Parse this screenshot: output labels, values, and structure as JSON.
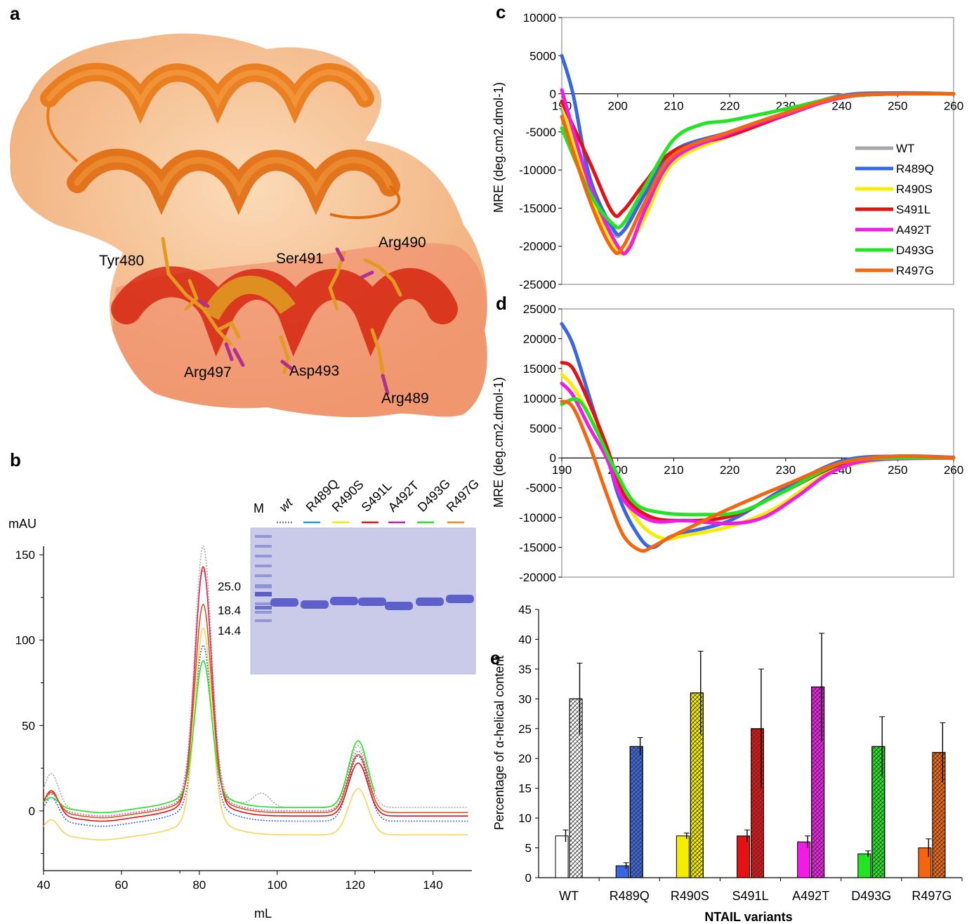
{
  "panels": {
    "a": "a",
    "b": "b",
    "c": "c",
    "d": "d",
    "e": "e"
  },
  "colors": {
    "WT": "#a6a6a6",
    "R489Q": "#3a66e0",
    "R490S": "#f5ec00",
    "S491L": "#e41212",
    "A492T": "#f01ce6",
    "D493G": "#22e422",
    "R497G": "#f4650f",
    "orange": "#f08a1e",
    "red": "#d41e0a",
    "surface": "#f4b483",
    "gel": "#c9ccea",
    "band": "#4a4ec4"
  },
  "panel_a": {
    "residues": [
      "Tyr480",
      "Ser491",
      "Arg490",
      "Arg497",
      "Asp493",
      "Arg489"
    ]
  },
  "panel_b": {
    "gel": {
      "marker": "M",
      "lanes": [
        "wt",
        "R489Q",
        "R490S",
        "S491L",
        "A492T",
        "D493G",
        "R497G"
      ],
      "mw": [
        "25.0",
        "18.4",
        "14.4"
      ]
    }
  },
  "chart_data": [
    {
      "panel": "b",
      "type": "line",
      "xlabel": "mL",
      "ylabel": "mAU",
      "xlim": [
        40,
        150
      ],
      "ylim": [
        -35,
        155
      ],
      "xticks": [
        40,
        60,
        80,
        100,
        120,
        140
      ],
      "yticks": [
        0,
        50,
        100,
        150
      ],
      "series": [
        {
          "name": "wt",
          "peak1": 147,
          "peak2": 38,
          "base": 2,
          "start": 22
        },
        {
          "name": "R489Q",
          "peak1": 89,
          "peak2": 32,
          "base": -6,
          "start": 8
        },
        {
          "name": "R490S",
          "peak1": 99,
          "peak2": 13,
          "base": -14,
          "start": -5
        },
        {
          "name": "S491L",
          "peak1": 135,
          "peak2": 28,
          "base": -3,
          "start": 12
        },
        {
          "name": "A492T",
          "peak1": 133,
          "peak2": 35,
          "base": 0,
          "start": 10
        },
        {
          "name": "D493G",
          "peak1": 80,
          "peak2": 41,
          "base": 2,
          "start": 8
        },
        {
          "name": "R497G",
          "peak1": 113,
          "peak2": 33,
          "base": -1,
          "start": 11
        }
      ]
    },
    {
      "panel": "c",
      "type": "line",
      "xlabel": "",
      "ylabel": "MRE  (deg.cm2.dmol-1)",
      "xlim": [
        190,
        260
      ],
      "ylim": [
        -25000,
        10000
      ],
      "xticks": [
        190,
        200,
        210,
        220,
        230,
        240,
        250,
        260
      ],
      "yticks": [
        10000,
        5000,
        0,
        -5000,
        -10000,
        -15000,
        -20000,
        -25000
      ],
      "legend": "right",
      "series": [
        {
          "name": "WT",
          "x": [
            190,
            195,
            199,
            201,
            205,
            210,
            220,
            230,
            240,
            250,
            260
          ],
          "y": [
            -2000,
            -12000,
            -18000,
            -18000,
            -12500,
            -7500,
            -5000,
            -2500,
            -200,
            100,
            0
          ]
        },
        {
          "name": "R489Q",
          "x": [
            190,
            192,
            195,
            199,
            201,
            205,
            210,
            220,
            230,
            240,
            250,
            260
          ],
          "y": [
            5000,
            0,
            -11000,
            -17500,
            -18000,
            -13000,
            -7500,
            -5000,
            -2500,
            -300,
            100,
            0
          ]
        },
        {
          "name": "R490S",
          "x": [
            190,
            195,
            200,
            202,
            205,
            210,
            220,
            230,
            240,
            250,
            260
          ],
          "y": [
            -1000,
            -13000,
            -20500,
            -20000,
            -16000,
            -9000,
            -5500,
            -2800,
            -500,
            0,
            0
          ]
        },
        {
          "name": "S491L",
          "x": [
            190,
            195,
            199,
            201,
            205,
            210,
            220,
            230,
            240,
            250,
            260
          ],
          "y": [
            -1000,
            -9000,
            -15500,
            -15300,
            -11500,
            -7500,
            -5500,
            -2800,
            -500,
            0,
            0
          ]
        },
        {
          "name": "A492T",
          "x": [
            190,
            195,
            200,
            202,
            205,
            210,
            220,
            230,
            240,
            250,
            260
          ],
          "y": [
            500,
            -12000,
            -20000,
            -20300,
            -15000,
            -8500,
            -5200,
            -2700,
            -500,
            0,
            0
          ]
        },
        {
          "name": "D493G",
          "x": [
            190,
            195,
            199,
            201,
            205,
            210,
            215,
            220,
            230,
            240,
            250,
            260
          ],
          "y": [
            -4500,
            -13000,
            -17000,
            -17000,
            -12000,
            -6000,
            -4000,
            -3500,
            -2000,
            -400,
            0,
            0
          ]
        },
        {
          "name": "R497G",
          "x": [
            190,
            195,
            199,
            201,
            205,
            210,
            220,
            230,
            240,
            250,
            260
          ],
          "y": [
            -3000,
            -14000,
            -20300,
            -20000,
            -14000,
            -8000,
            -5000,
            -2500,
            -400,
            0,
            0
          ]
        }
      ]
    },
    {
      "panel": "d",
      "type": "line",
      "xlabel": "",
      "ylabel": "MRE  (deg.cm2.dmol-1)",
      "xlim": [
        190,
        260
      ],
      "ylim": [
        -20000,
        25000
      ],
      "xticks": [
        190,
        200,
        210,
        220,
        230,
        240,
        250,
        260
      ],
      "yticks": [
        25000,
        20000,
        15000,
        10000,
        5000,
        0,
        -5000,
        -10000,
        -15000,
        -20000
      ],
      "series": [
        {
          "name": "R489Q",
          "x": [
            190,
            192,
            195,
            198,
            200,
            203,
            206,
            210,
            220,
            230,
            240,
            250,
            260
          ],
          "y": [
            22500,
            19000,
            10000,
            1000,
            -6000,
            -12000,
            -15000,
            -13000,
            -10500,
            -5000,
            -500,
            300,
            100
          ]
        },
        {
          "name": "R490S",
          "x": [
            190,
            192,
            195,
            198,
            200,
            204,
            208,
            212,
            220,
            228,
            235,
            240,
            250,
            260
          ],
          "y": [
            14000,
            12000,
            7000,
            1000,
            -5000,
            -11000,
            -13500,
            -13000,
            -11500,
            -8500,
            -4000,
            -1500,
            0,
            0
          ]
        },
        {
          "name": "S491L",
          "x": [
            190,
            192,
            195,
            198,
            201,
            205,
            210,
            220,
            230,
            240,
            250,
            260
          ],
          "y": [
            16000,
            15000,
            9000,
            2000,
            -6000,
            -9500,
            -10500,
            -9800,
            -5500,
            -1000,
            200,
            0
          ]
        },
        {
          "name": "A492T",
          "x": [
            190,
            192,
            195,
            198,
            201,
            206,
            212,
            220,
            226,
            232,
            238,
            245,
            260
          ],
          "y": [
            12500,
            10500,
            5000,
            0,
            -7000,
            -10500,
            -10500,
            -11000,
            -10000,
            -6500,
            -2500,
            -400,
            0
          ]
        },
        {
          "name": "D493G",
          "x": [
            190,
            193,
            196,
            199,
            203,
            208,
            215,
            222,
            230,
            240,
            250,
            260
          ],
          "y": [
            9000,
            9700,
            5000,
            -1000,
            -7500,
            -9200,
            -9500,
            -9000,
            -5500,
            -800,
            0,
            0
          ]
        },
        {
          "name": "R497G",
          "x": [
            190,
            192,
            195,
            198,
            201,
            204,
            206,
            210,
            220,
            230,
            240,
            250,
            260
          ],
          "y": [
            9500,
            8500,
            2000,
            -6000,
            -13000,
            -15500,
            -15000,
            -13000,
            -8500,
            -4500,
            -800,
            300,
            0
          ]
        }
      ]
    },
    {
      "panel": "e",
      "type": "bar",
      "xlabel": "NTAIL variants",
      "ylabel": "Percentage of α-helical content",
      "ylim": [
        0,
        45
      ],
      "yticks": [
        0,
        5,
        10,
        15,
        20,
        25,
        30,
        35,
        40,
        45
      ],
      "categories": [
        "WT",
        "R489Q",
        "R490S",
        "S491L",
        "A492T",
        "D493G",
        "R497G"
      ],
      "series": [
        {
          "name": "",
          "values": [
            7,
            2,
            7,
            7,
            6,
            4,
            5
          ],
          "errors": [
            1,
            0.5,
            0.5,
            1,
            1,
            0.5,
            1.5
          ]
        },
        {
          "name": "",
          "values": [
            30,
            22,
            31,
            25,
            32,
            22,
            21
          ],
          "errors": [
            6,
            1.5,
            7,
            10,
            9,
            5,
            5
          ]
        }
      ]
    }
  ]
}
